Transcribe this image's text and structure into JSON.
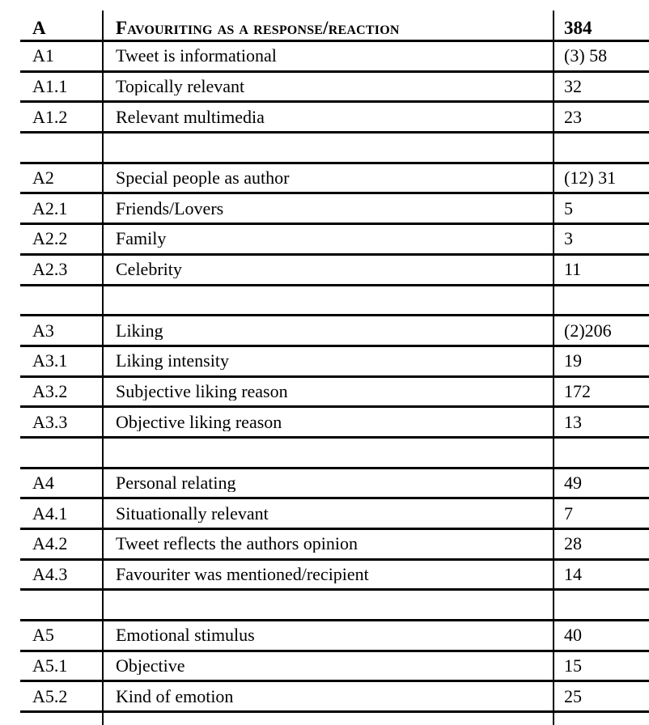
{
  "page": {
    "background_color": "#ffffff",
    "text_color": "#000000",
    "line_color": "#000000"
  },
  "table": {
    "description": "coding-scheme frequency table",
    "header": {
      "code": "A",
      "label": "Favouriting as a response/reaction",
      "value": "384"
    },
    "rows": [
      {
        "code": "A1",
        "label": "Tweet is informational",
        "value": "(3) 58"
      },
      {
        "code": "A1.1",
        "label": "Topically relevant",
        "value": "32"
      },
      {
        "code": "A1.2",
        "label": "Relevant multimedia",
        "value": "23"
      },
      {
        "type": "spacer"
      },
      {
        "code": "A2",
        "label": "Special people as author",
        "value": "(12) 31"
      },
      {
        "code": "A2.1",
        "label": "Friends/Lovers",
        "value": "5"
      },
      {
        "code": "A2.2",
        "label": "Family",
        "value": "3"
      },
      {
        "code": "A2.3",
        "label": "Celebrity",
        "value": "11"
      },
      {
        "type": "spacer"
      },
      {
        "code": "A3",
        "label": "Liking",
        "value": "(2)206"
      },
      {
        "code": "A3.1",
        "label": "Liking intensity",
        "value": "19"
      },
      {
        "code": "A3.2",
        "label": "Subjective liking reason",
        "value": "172"
      },
      {
        "code": "A3.3",
        "label": "Objective liking reason",
        "value": "13"
      },
      {
        "type": "spacer"
      },
      {
        "code": "A4",
        "label": "Personal relating",
        "value": "49"
      },
      {
        "code": "A4.1",
        "label": "Situationally relevant",
        "value": "7"
      },
      {
        "code": "A4.2",
        "label": "Tweet reflects the authors opinion",
        "value": "28"
      },
      {
        "code": "A4.3",
        "label": "Favouriter was mentioned/recipient",
        "value": "14"
      },
      {
        "type": "spacer"
      },
      {
        "code": "A5",
        "label": "Emotional stimulus",
        "value": "40"
      },
      {
        "code": "A5.1",
        "label": "Objective",
        "value": "15"
      },
      {
        "code": "A5.2",
        "label": "Kind of emotion",
        "value": "25"
      },
      {
        "type": "partial-spacer"
      }
    ]
  }
}
